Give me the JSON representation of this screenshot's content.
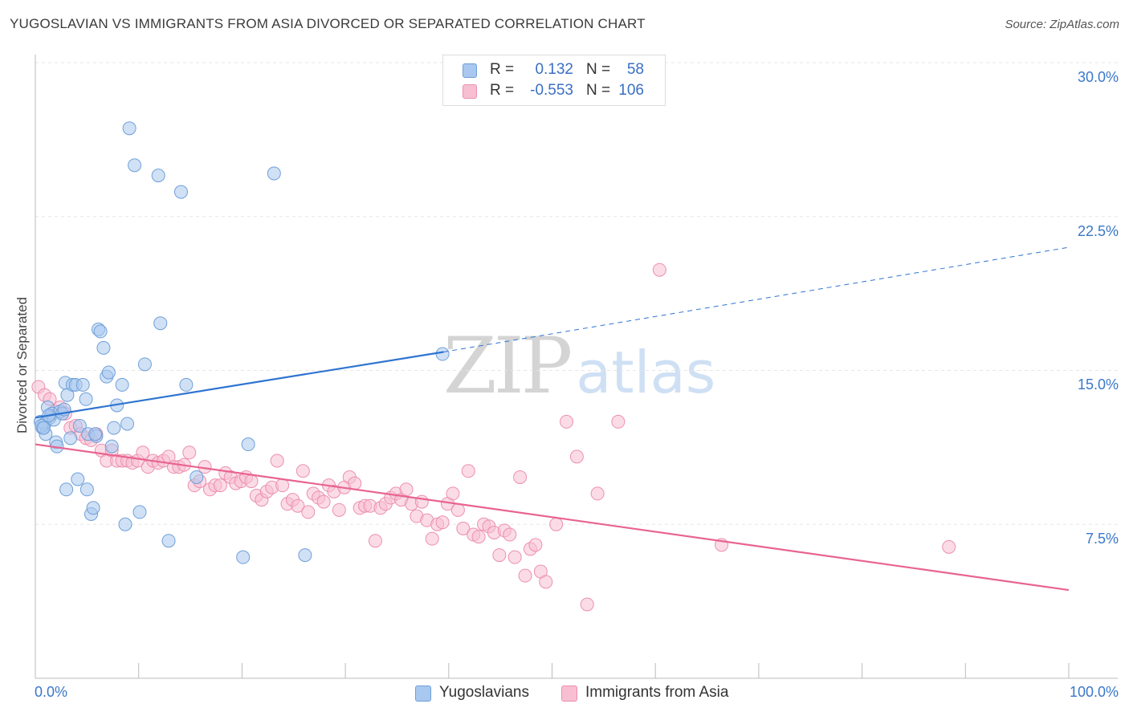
{
  "title": "YUGOSLAVIAN VS IMMIGRANTS FROM ASIA DIVORCED OR SEPARATED CORRELATION CHART",
  "source": "Source: ZipAtlas.com",
  "watermark": {
    "zip": "ZIP",
    "atlas": "atlas"
  },
  "legend": {
    "rows": [
      {
        "r_label": "R =",
        "r_value": "0.132",
        "n_label": "N =",
        "n_value": "58"
      },
      {
        "r_label": "R =",
        "r_value": "-0.553",
        "n_label": "N =",
        "n_value": "106"
      }
    ]
  },
  "colors": {
    "blue_fill": "#a9c8ef",
    "blue_stroke": "#6f9fd8",
    "blue_line": "#2f74d0",
    "pink_fill": "#f7bfd1",
    "pink_stroke": "#ec8fb0",
    "pink_line": "#e8648f",
    "grid": "#e6e6e6",
    "tick_text": "#3a78c9"
  },
  "chart_data": {
    "type": "scatter",
    "title": "YUGOSLAVIAN VS IMMIGRANTS FROM ASIA DIVORCED OR SEPARATED CORRELATION CHART",
    "xlabel": "",
    "ylabel": "Divorced or Separated",
    "xlim": [
      0,
      100
    ],
    "ylim": [
      0,
      31
    ],
    "x_tick_labels": [
      "0.0%",
      "100.0%"
    ],
    "y_ticks": [
      7.5,
      15.0,
      22.5,
      30.0
    ],
    "y_tick_labels": [
      "7.5%",
      "15.0%",
      "22.5%",
      "30.0%"
    ],
    "grid": true,
    "legend_position": "top-center",
    "series": [
      {
        "name": "Yugoslavians",
        "color": "#a9c8ef",
        "r": 0.132,
        "n": 58,
        "trend": {
          "x": [
            0,
            39.5
          ],
          "y": [
            12.7,
            15.9
          ],
          "dashed_extension": {
            "x": [
              39.5,
              100
            ],
            "y": [
              15.9,
              21.0
            ]
          }
        },
        "points": [
          [
            0.5,
            12.5
          ],
          [
            0.7,
            12.2
          ],
          [
            0.9,
            12.4
          ],
          [
            1.0,
            11.9
          ],
          [
            1.2,
            13.2
          ],
          [
            1.4,
            12.7
          ],
          [
            1.6,
            12.9
          ],
          [
            1.8,
            12.6
          ],
          [
            2.0,
            11.5
          ],
          [
            2.1,
            11.3
          ],
          [
            2.4,
            13.0
          ],
          [
            2.6,
            12.9
          ],
          [
            2.9,
            14.4
          ],
          [
            3.1,
            13.8
          ],
          [
            3.4,
            11.7
          ],
          [
            3.6,
            14.3
          ],
          [
            3.9,
            14.3
          ],
          [
            4.1,
            9.7
          ],
          [
            4.3,
            12.3
          ],
          [
            4.6,
            14.3
          ],
          [
            4.9,
            13.6
          ],
          [
            5.1,
            11.9
          ],
          [
            5.4,
            8.0
          ],
          [
            5.6,
            8.3
          ],
          [
            5.9,
            11.8
          ],
          [
            6.1,
            17.0
          ],
          [
            6.3,
            16.9
          ],
          [
            6.6,
            16.1
          ],
          [
            6.9,
            14.7
          ],
          [
            7.1,
            14.9
          ],
          [
            7.4,
            11.3
          ],
          [
            7.9,
            13.3
          ],
          [
            8.4,
            14.3
          ],
          [
            8.7,
            7.5
          ],
          [
            8.9,
            12.4
          ],
          [
            9.1,
            26.8
          ],
          [
            9.6,
            25.0
          ],
          [
            10.1,
            8.1
          ],
          [
            10.6,
            15.3
          ],
          [
            11.9,
            24.5
          ],
          [
            12.1,
            17.3
          ],
          [
            12.9,
            6.7
          ],
          [
            14.1,
            23.7
          ],
          [
            14.6,
            14.3
          ],
          [
            15.6,
            9.8
          ],
          [
            20.1,
            5.9
          ],
          [
            20.6,
            11.4
          ],
          [
            23.1,
            24.6
          ],
          [
            26.1,
            6.0
          ],
          [
            39.4,
            15.8
          ],
          [
            0.6,
            12.3
          ],
          [
            1.3,
            12.8
          ],
          [
            3.0,
            9.2
          ],
          [
            5.0,
            9.2
          ],
          [
            5.8,
            11.9
          ],
          [
            7.6,
            12.2
          ],
          [
            2.8,
            13.1
          ],
          [
            0.8,
            12.2
          ]
        ]
      },
      {
        "name": "Immigrants from Asia",
        "color": "#f7bfd1",
        "r": -0.553,
        "n": 106,
        "trend": {
          "x": [
            0,
            100
          ],
          "y": [
            11.4,
            4.3
          ]
        },
        "points": [
          [
            0.3,
            14.2
          ],
          [
            0.9,
            13.8
          ],
          [
            1.4,
            13.6
          ],
          [
            1.9,
            13.0
          ],
          [
            2.4,
            13.2
          ],
          [
            2.9,
            12.9
          ],
          [
            3.4,
            12.2
          ],
          [
            3.9,
            12.3
          ],
          [
            4.4,
            11.9
          ],
          [
            4.9,
            11.7
          ],
          [
            5.4,
            11.6
          ],
          [
            5.9,
            11.9
          ],
          [
            6.4,
            11.1
          ],
          [
            6.9,
            10.6
          ],
          [
            7.4,
            11.1
          ],
          [
            7.9,
            10.6
          ],
          [
            8.4,
            10.6
          ],
          [
            8.9,
            10.6
          ],
          [
            9.4,
            10.5
          ],
          [
            9.9,
            10.6
          ],
          [
            10.4,
            11.0
          ],
          [
            10.9,
            10.3
          ],
          [
            11.4,
            10.6
          ],
          [
            11.9,
            10.5
          ],
          [
            12.4,
            10.6
          ],
          [
            12.9,
            10.8
          ],
          [
            13.4,
            10.3
          ],
          [
            13.9,
            10.3
          ],
          [
            14.4,
            10.4
          ],
          [
            14.9,
            11.0
          ],
          [
            15.4,
            9.4
          ],
          [
            15.9,
            9.6
          ],
          [
            16.4,
            10.3
          ],
          [
            16.9,
            9.2
          ],
          [
            17.4,
            9.4
          ],
          [
            17.9,
            9.4
          ],
          [
            18.4,
            10.0
          ],
          [
            18.9,
            9.8
          ],
          [
            19.4,
            9.5
          ],
          [
            19.9,
            9.6
          ],
          [
            20.4,
            9.8
          ],
          [
            20.9,
            9.6
          ],
          [
            21.4,
            8.9
          ],
          [
            21.9,
            8.7
          ],
          [
            22.4,
            9.1
          ],
          [
            22.9,
            9.3
          ],
          [
            23.4,
            10.6
          ],
          [
            23.9,
            9.4
          ],
          [
            24.4,
            8.5
          ],
          [
            24.9,
            8.7
          ],
          [
            25.4,
            8.4
          ],
          [
            25.9,
            10.1
          ],
          [
            26.4,
            8.1
          ],
          [
            26.9,
            9.0
          ],
          [
            27.4,
            8.8
          ],
          [
            27.9,
            8.6
          ],
          [
            28.4,
            9.4
          ],
          [
            28.9,
            9.1
          ],
          [
            29.4,
            8.2
          ],
          [
            29.9,
            9.3
          ],
          [
            30.4,
            9.8
          ],
          [
            30.9,
            9.5
          ],
          [
            31.4,
            8.3
          ],
          [
            31.9,
            8.4
          ],
          [
            32.4,
            8.4
          ],
          [
            32.9,
            6.7
          ],
          [
            33.4,
            8.3
          ],
          [
            33.9,
            8.5
          ],
          [
            34.4,
            8.8
          ],
          [
            34.9,
            9.0
          ],
          [
            35.4,
            8.7
          ],
          [
            35.9,
            9.2
          ],
          [
            36.4,
            8.5
          ],
          [
            36.9,
            7.9
          ],
          [
            37.4,
            8.6
          ],
          [
            37.9,
            7.7
          ],
          [
            38.4,
            6.8
          ],
          [
            38.9,
            7.5
          ],
          [
            39.4,
            7.6
          ],
          [
            39.9,
            8.5
          ],
          [
            40.4,
            9.0
          ],
          [
            40.9,
            8.2
          ],
          [
            41.4,
            7.3
          ],
          [
            41.9,
            10.1
          ],
          [
            42.4,
            7.0
          ],
          [
            42.9,
            6.9
          ],
          [
            43.4,
            7.5
          ],
          [
            43.9,
            7.4
          ],
          [
            44.4,
            7.1
          ],
          [
            44.9,
            6.0
          ],
          [
            45.4,
            7.2
          ],
          [
            45.9,
            7.0
          ],
          [
            46.4,
            5.9
          ],
          [
            46.9,
            9.8
          ],
          [
            47.4,
            5.0
          ],
          [
            47.9,
            6.3
          ],
          [
            48.4,
            6.5
          ],
          [
            48.9,
            5.2
          ],
          [
            49.4,
            4.7
          ],
          [
            50.4,
            7.5
          ],
          [
            51.4,
            12.5
          ],
          [
            52.4,
            10.8
          ],
          [
            54.4,
            9.0
          ],
          [
            56.4,
            12.5
          ],
          [
            60.4,
            19.9
          ],
          [
            66.4,
            6.5
          ],
          [
            88.4,
            6.4
          ],
          [
            53.4,
            3.6
          ]
        ]
      }
    ]
  }
}
